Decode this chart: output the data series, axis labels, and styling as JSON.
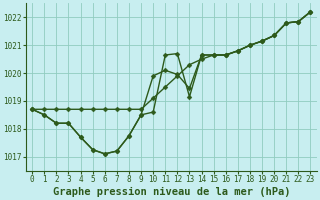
{
  "title": "Graphe pression niveau de la mer (hPa)",
  "background_color": "#c8eef0",
  "grid_color": "#90ccc0",
  "line_color": "#2d5a1b",
  "xlim": [
    -0.5,
    23.5
  ],
  "ylim": [
    1016.5,
    1022.5
  ],
  "yticks": [
    1017,
    1018,
    1019,
    1020,
    1021,
    1022
  ],
  "xticks": [
    0,
    1,
    2,
    3,
    4,
    5,
    6,
    7,
    8,
    9,
    10,
    11,
    12,
    13,
    14,
    15,
    16,
    17,
    18,
    19,
    20,
    21,
    22,
    23
  ],
  "series": [
    [
      1018.7,
      1018.5,
      1018.2,
      1018.2,
      1017.7,
      1017.25,
      1017.1,
      1017.2,
      1017.75,
      1018.5,
      1018.6,
      1020.65,
      1020.7,
      1019.15,
      1020.65,
      1020.65,
      1020.65,
      1020.8,
      1021.0,
      1021.15,
      1021.35,
      1021.8,
      1021.85,
      1022.2
    ],
    [
      1018.7,
      1018.5,
      1018.2,
      1018.2,
      1017.7,
      1017.25,
      1017.1,
      1017.2,
      1017.75,
      1018.5,
      1019.9,
      1020.1,
      1019.95,
      1019.45,
      1020.65,
      1020.65,
      1020.65,
      1020.8,
      1021.0,
      1021.15,
      1021.35,
      1021.8,
      1021.85,
      1022.2
    ],
    [
      1018.7,
      1018.7,
      1018.7,
      1018.7,
      1018.7,
      1018.7,
      1018.7,
      1018.7,
      1018.7,
      1018.7,
      1019.1,
      1019.5,
      1019.9,
      1020.3,
      1020.5,
      1020.65,
      1020.65,
      1020.8,
      1021.0,
      1021.15,
      1021.35,
      1021.8,
      1021.85,
      1022.2
    ]
  ],
  "marker_size": 2.5,
  "line_width": 1.0,
  "title_fontsize": 7.5,
  "tick_fontsize": 5.5,
  "title_color": "#2d5a1b",
  "tick_color": "#2d5a1b",
  "spine_color": "#2d5a1b"
}
